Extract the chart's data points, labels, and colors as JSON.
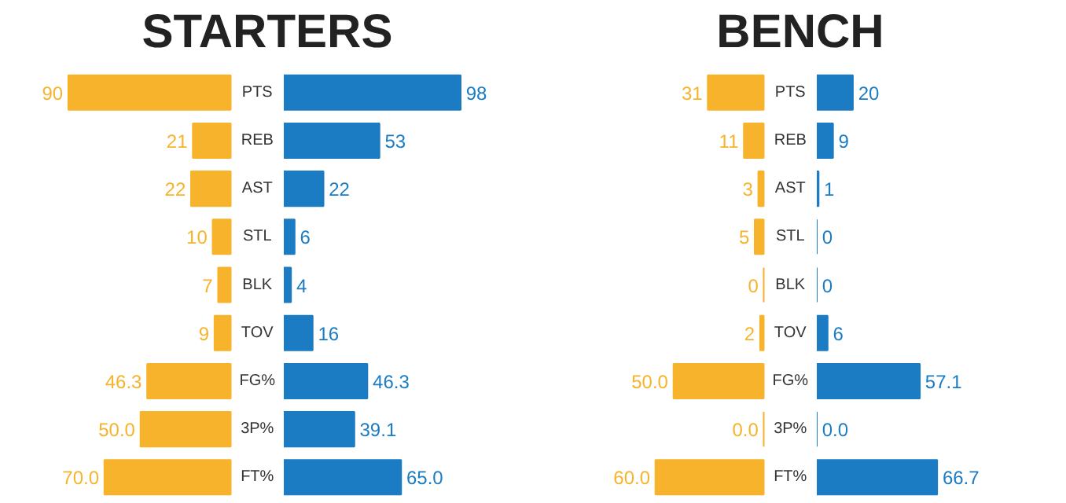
{
  "chart_data": [
    {
      "type": "bar",
      "orientation": "horizontal",
      "title": "STARTERS",
      "categories": [
        "PTS",
        "REB",
        "AST",
        "STL",
        "BLK",
        "TOV",
        "FG%",
        "3P%",
        "FT%"
      ],
      "series": [
        {
          "color": "#f7b32b",
          "values": [
            90,
            21,
            22,
            10,
            7,
            9,
            46.3,
            50.0,
            70.0
          ],
          "value_labels": [
            "90",
            "21",
            "22",
            "10",
            "7",
            "9",
            "46.3",
            "50.0",
            "70.0"
          ]
        }
      ]
    },
    {
      "type": "bar",
      "orientation": "horizontal",
      "categories": [
        null,
        null,
        null,
        null,
        null,
        null,
        null,
        null,
        null
      ],
      "series": [
        {
          "color": "#1b7cc4",
          "values": [
            98,
            53,
            22,
            6,
            4,
            16,
            46.3,
            39.1,
            65.0
          ],
          "value_labels": [
            "98",
            "53",
            "22",
            "6",
            "4",
            "16",
            "46.3",
            "39.1",
            "65.0"
          ]
        }
      ]
    },
    {
      "type": "bar",
      "orientation": "horizontal",
      "title": "BENCH",
      "categories": [
        "PTS",
        "REB",
        "AST",
        "STL",
        "BLK",
        "TOV",
        "FG%",
        "3P%",
        "FT%"
      ],
      "series": [
        {
          "color": "#f7b32b",
          "values": [
            31,
            11,
            3,
            5,
            0,
            2,
            50.0,
            0.0,
            60.0
          ],
          "value_labels": [
            "31",
            "11",
            "3",
            "5",
            "0",
            "2",
            "50.0",
            "0.0",
            "60.0"
          ]
        }
      ]
    },
    {
      "type": "bar",
      "orientation": "horizontal",
      "categories": [
        null,
        null,
        null,
        null,
        null,
        null,
        null,
        null,
        null
      ],
      "series": [
        {
          "color": "#1b7cc4",
          "values": [
            20,
            9,
            1,
            0,
            0,
            6,
            57.1,
            0.0,
            66.7
          ],
          "value_labels": [
            "20",
            "9",
            "1",
            "0",
            "0",
            "6",
            "57.1",
            "0.0",
            "66.7"
          ]
        }
      ]
    }
  ]
}
